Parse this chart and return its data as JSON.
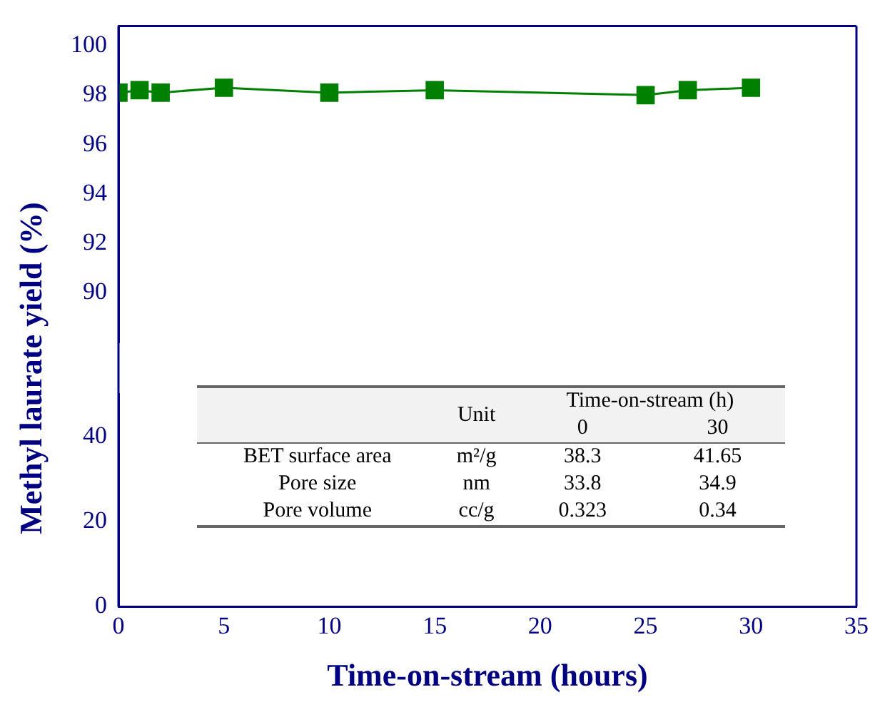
{
  "chart_data": [
    {
      "type": "line",
      "ylabel": "Methyl laurate yield (%)",
      "x": [
        0,
        1,
        2,
        5,
        10,
        15,
        25,
        27,
        30
      ],
      "series": [
        {
          "color": "#008000",
          "values": [
            98.1,
            98.2,
            98.1,
            98.3,
            98.1,
            98.2,
            98.0,
            98.2,
            98.3
          ]
        }
      ],
      "xlim": [
        0,
        35
      ],
      "xticks": [
        0,
        5,
        10,
        15,
        20,
        25,
        30,
        35
      ],
      "ylim": [
        88,
        100.8
      ],
      "yticks": [
        90,
        92,
        94,
        96,
        98,
        100
      ],
      "tick_labels": "y",
      "grid": false,
      "legend": false,
      "marker": "square",
      "line_style": "solid"
    },
    {
      "type": "line",
      "xlabel": "Time-on-stream (hours)",
      "xlim": [
        0,
        35
      ],
      "xticks": [
        0,
        5,
        10,
        15,
        20,
        25,
        30,
        35
      ],
      "ylim": [
        0,
        50
      ],
      "yticks": [
        0,
        20,
        40
      ],
      "grid": false,
      "legend": false,
      "annotations": [
        "Unit",
        "Time-on-stream (h)",
        "0",
        "30",
        "BET surface area",
        "m²/g",
        "38.3",
        "41.65",
        "Pore size",
        "nm",
        "33.8",
        "34.9",
        "Pore volume",
        "cc/g",
        "0.323",
        "0.34"
      ]
    }
  ]
}
